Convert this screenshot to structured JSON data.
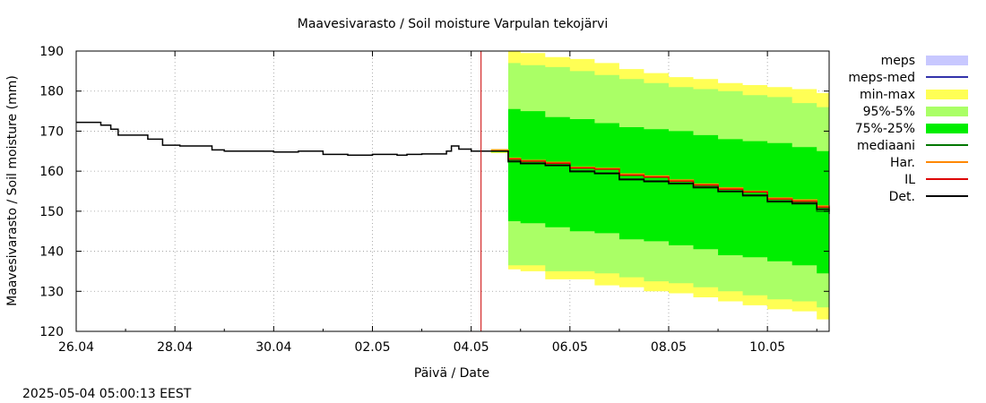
{
  "chart_data": {
    "type": "line",
    "title": "Maavesivarasto / Soil moisture   Varpulan tekojärvi",
    "xlabel": "Päivä / Date",
    "ylabel": "Maavesivarasto / Soil moisture (mm)",
    "timestamp": "2025-05-04  05:00:13 EEST",
    "xlim": [
      0,
      15.25
    ],
    "ylim": [
      120,
      190
    ],
    "yticks": [
      120,
      130,
      140,
      150,
      160,
      170,
      180,
      190
    ],
    "xticks": [
      {
        "x": 0,
        "label": "26.04"
      },
      {
        "x": 2,
        "label": "28.04"
      },
      {
        "x": 4,
        "label": "30.04"
      },
      {
        "x": 6,
        "label": "02.05"
      },
      {
        "x": 8,
        "label": "04.05"
      },
      {
        "x": 10,
        "label": "06.05"
      },
      {
        "x": 12,
        "label": "08.05"
      },
      {
        "x": 14,
        "label": "10.05"
      }
    ],
    "grid": true,
    "legend_position": "right",
    "forecast_marker_x": 8.2,
    "legend": [
      {
        "label": "meps",
        "kind": "box",
        "color": "#c8c8ff"
      },
      {
        "label": "meps-med",
        "kind": "line",
        "color": "#3333aa"
      },
      {
        "label": "min-max",
        "kind": "box",
        "color": "#ffff55"
      },
      {
        "label": "95%-5%",
        "kind": "box",
        "color": "#aaff66"
      },
      {
        "label": "75%-25%",
        "kind": "box",
        "color": "#00ee00"
      },
      {
        "label": "mediaani",
        "kind": "line",
        "color": "#007700"
      },
      {
        "label": "Har.",
        "kind": "line",
        "color": "#ff8800"
      },
      {
        "label": "IL",
        "kind": "line",
        "color": "#dd0000"
      },
      {
        "label": "Det.",
        "kind": "line",
        "color": "#000000"
      }
    ],
    "observed": {
      "name": "Det.",
      "x": [
        0,
        0.35,
        0.5,
        0.7,
        0.85,
        1.2,
        1.45,
        1.75,
        2.1,
        2.5,
        2.75,
        3.0,
        3.5,
        4.0,
        4.5,
        5.0,
        5.5,
        6.0,
        6.5,
        6.7,
        7.0,
        7.5,
        7.6,
        7.75,
        8.0,
        8.4
      ],
      "y": [
        172.2,
        172.2,
        171.5,
        170.5,
        169.0,
        169.0,
        168.0,
        166.5,
        166.3,
        166.3,
        165.3,
        165.0,
        165.0,
        164.8,
        165.0,
        164.2,
        164.0,
        164.2,
        164.0,
        164.2,
        164.3,
        165.0,
        166.3,
        165.5,
        165.0,
        165.0
      ]
    },
    "forecast": {
      "x": [
        8.4,
        8.75,
        9.0,
        9.5,
        10.0,
        10.5,
        11.0,
        11.5,
        12.0,
        12.5,
        13.0,
        13.5,
        14.0,
        14.5,
        15.0,
        15.25
      ],
      "det": [
        165.0,
        162.5,
        162.0,
        161.5,
        160.0,
        159.5,
        158.0,
        157.5,
        157.0,
        156.0,
        155.0,
        154.0,
        152.5,
        152.0,
        150.5,
        150.0
      ],
      "il": [
        165.0,
        163.0,
        162.5,
        162.0,
        160.8,
        160.5,
        159.0,
        158.5,
        157.5,
        156.5,
        155.5,
        154.8,
        153.0,
        152.5,
        151.0,
        150.5
      ],
      "har": [
        165.3,
        163.2,
        162.7,
        162.2,
        161.0,
        160.7,
        159.3,
        158.8,
        157.8,
        156.8,
        155.8,
        155.0,
        153.3,
        152.8,
        151.3,
        150.8
      ],
      "median": [
        165.0,
        162.3,
        161.8,
        161.3,
        159.8,
        159.3,
        157.8,
        157.3,
        156.8,
        155.8,
        154.8,
        153.8,
        152.3,
        151.8,
        150.0,
        149.3
      ],
      "minmax_upper": [
        165.5,
        190.0,
        189.5,
        188.5,
        188.0,
        187.0,
        185.5,
        184.5,
        183.5,
        183.0,
        182.0,
        181.5,
        181.0,
        180.5,
        179.5,
        179.0
      ],
      "minmax_lower": [
        164.5,
        135.5,
        135.0,
        133.0,
        133.0,
        131.5,
        131.0,
        130.0,
        129.5,
        128.5,
        127.5,
        126.5,
        125.5,
        125.0,
        123.0,
        122.5
      ],
      "p95": [
        165.3,
        187.0,
        186.5,
        186.0,
        185.0,
        184.0,
        183.0,
        182.0,
        181.0,
        180.5,
        180.0,
        179.0,
        178.5,
        177.0,
        176.0,
        175.5
      ],
      "p5": [
        164.7,
        136.5,
        136.5,
        135.0,
        135.0,
        134.5,
        133.5,
        132.5,
        132.0,
        131.0,
        130.0,
        129.0,
        128.0,
        127.5,
        126.0,
        125.5
      ],
      "p75": [
        165.2,
        175.5,
        175.0,
        173.5,
        173.0,
        172.0,
        171.0,
        170.5,
        170.0,
        169.0,
        168.0,
        167.5,
        167.0,
        166.0,
        165.0,
        164.5
      ],
      "p25": [
        164.8,
        147.5,
        147.0,
        146.0,
        145.0,
        144.5,
        143.0,
        142.5,
        141.5,
        140.5,
        139.0,
        138.5,
        137.5,
        136.5,
        134.5,
        134.0
      ]
    }
  }
}
